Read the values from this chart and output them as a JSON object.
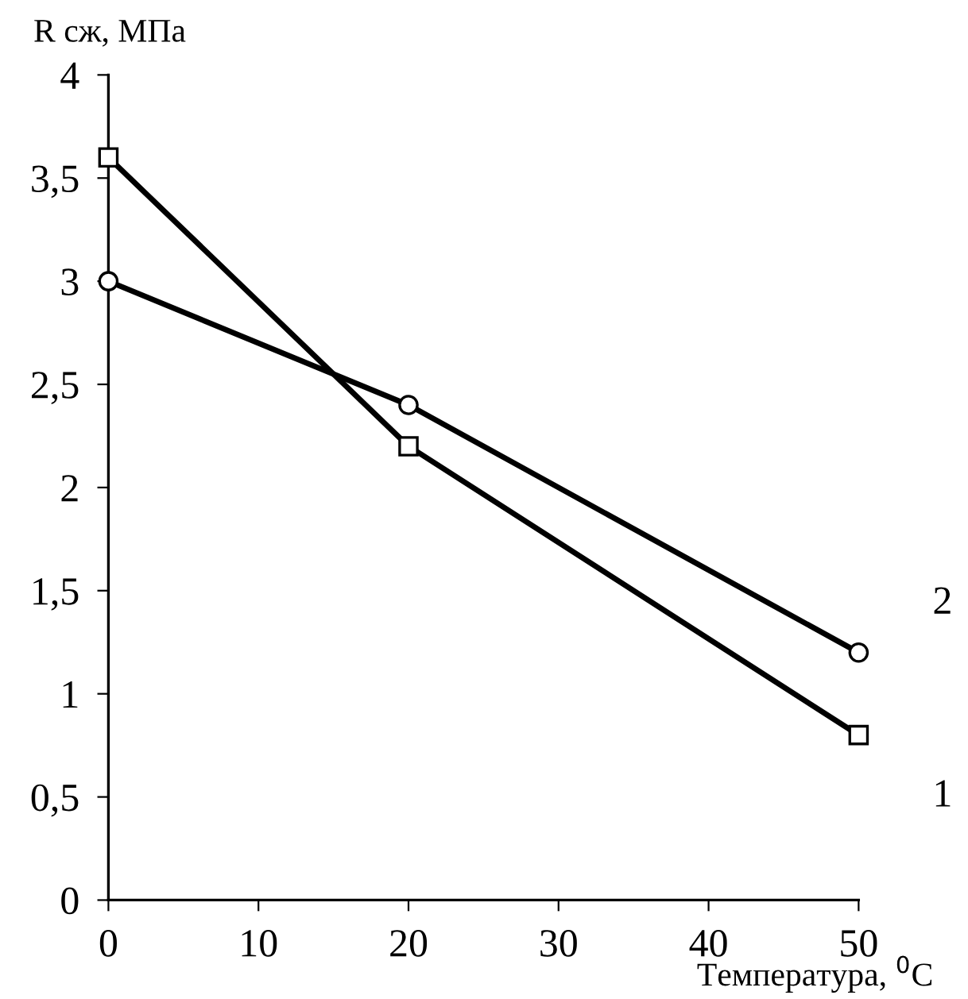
{
  "chart_data": {
    "type": "line",
    "xlabel": "Температура, $^{0}$C",
    "ylabel": "R сж, МПа",
    "x": [
      0,
      20,
      50
    ],
    "series": [
      {
        "name": "1",
        "color": "#000000",
        "marker": "square",
        "values": [
          3.6,
          2.2,
          0.8
        ]
      },
      {
        "name": "2",
        "color": "#000000",
        "marker": "circle",
        "values": [
          3.0,
          2.4,
          1.2
        ]
      }
    ],
    "xlim": [
      0,
      50
    ],
    "xticks": [
      0,
      10,
      20,
      30,
      40,
      50
    ],
    "ylim": [
      0,
      4
    ],
    "yticks": [
      0,
      {
        "value": 0.5,
        "label": "0,5"
      },
      1,
      {
        "value": 1.5,
        "label": "1,5"
      },
      2,
      {
        "value": 2.5,
        "label": "2,5"
      },
      3,
      {
        "value": 3.5,
        "label": "3,5"
      },
      4
    ],
    "grid": false,
    "legend": false,
    "line_style": "solid"
  }
}
